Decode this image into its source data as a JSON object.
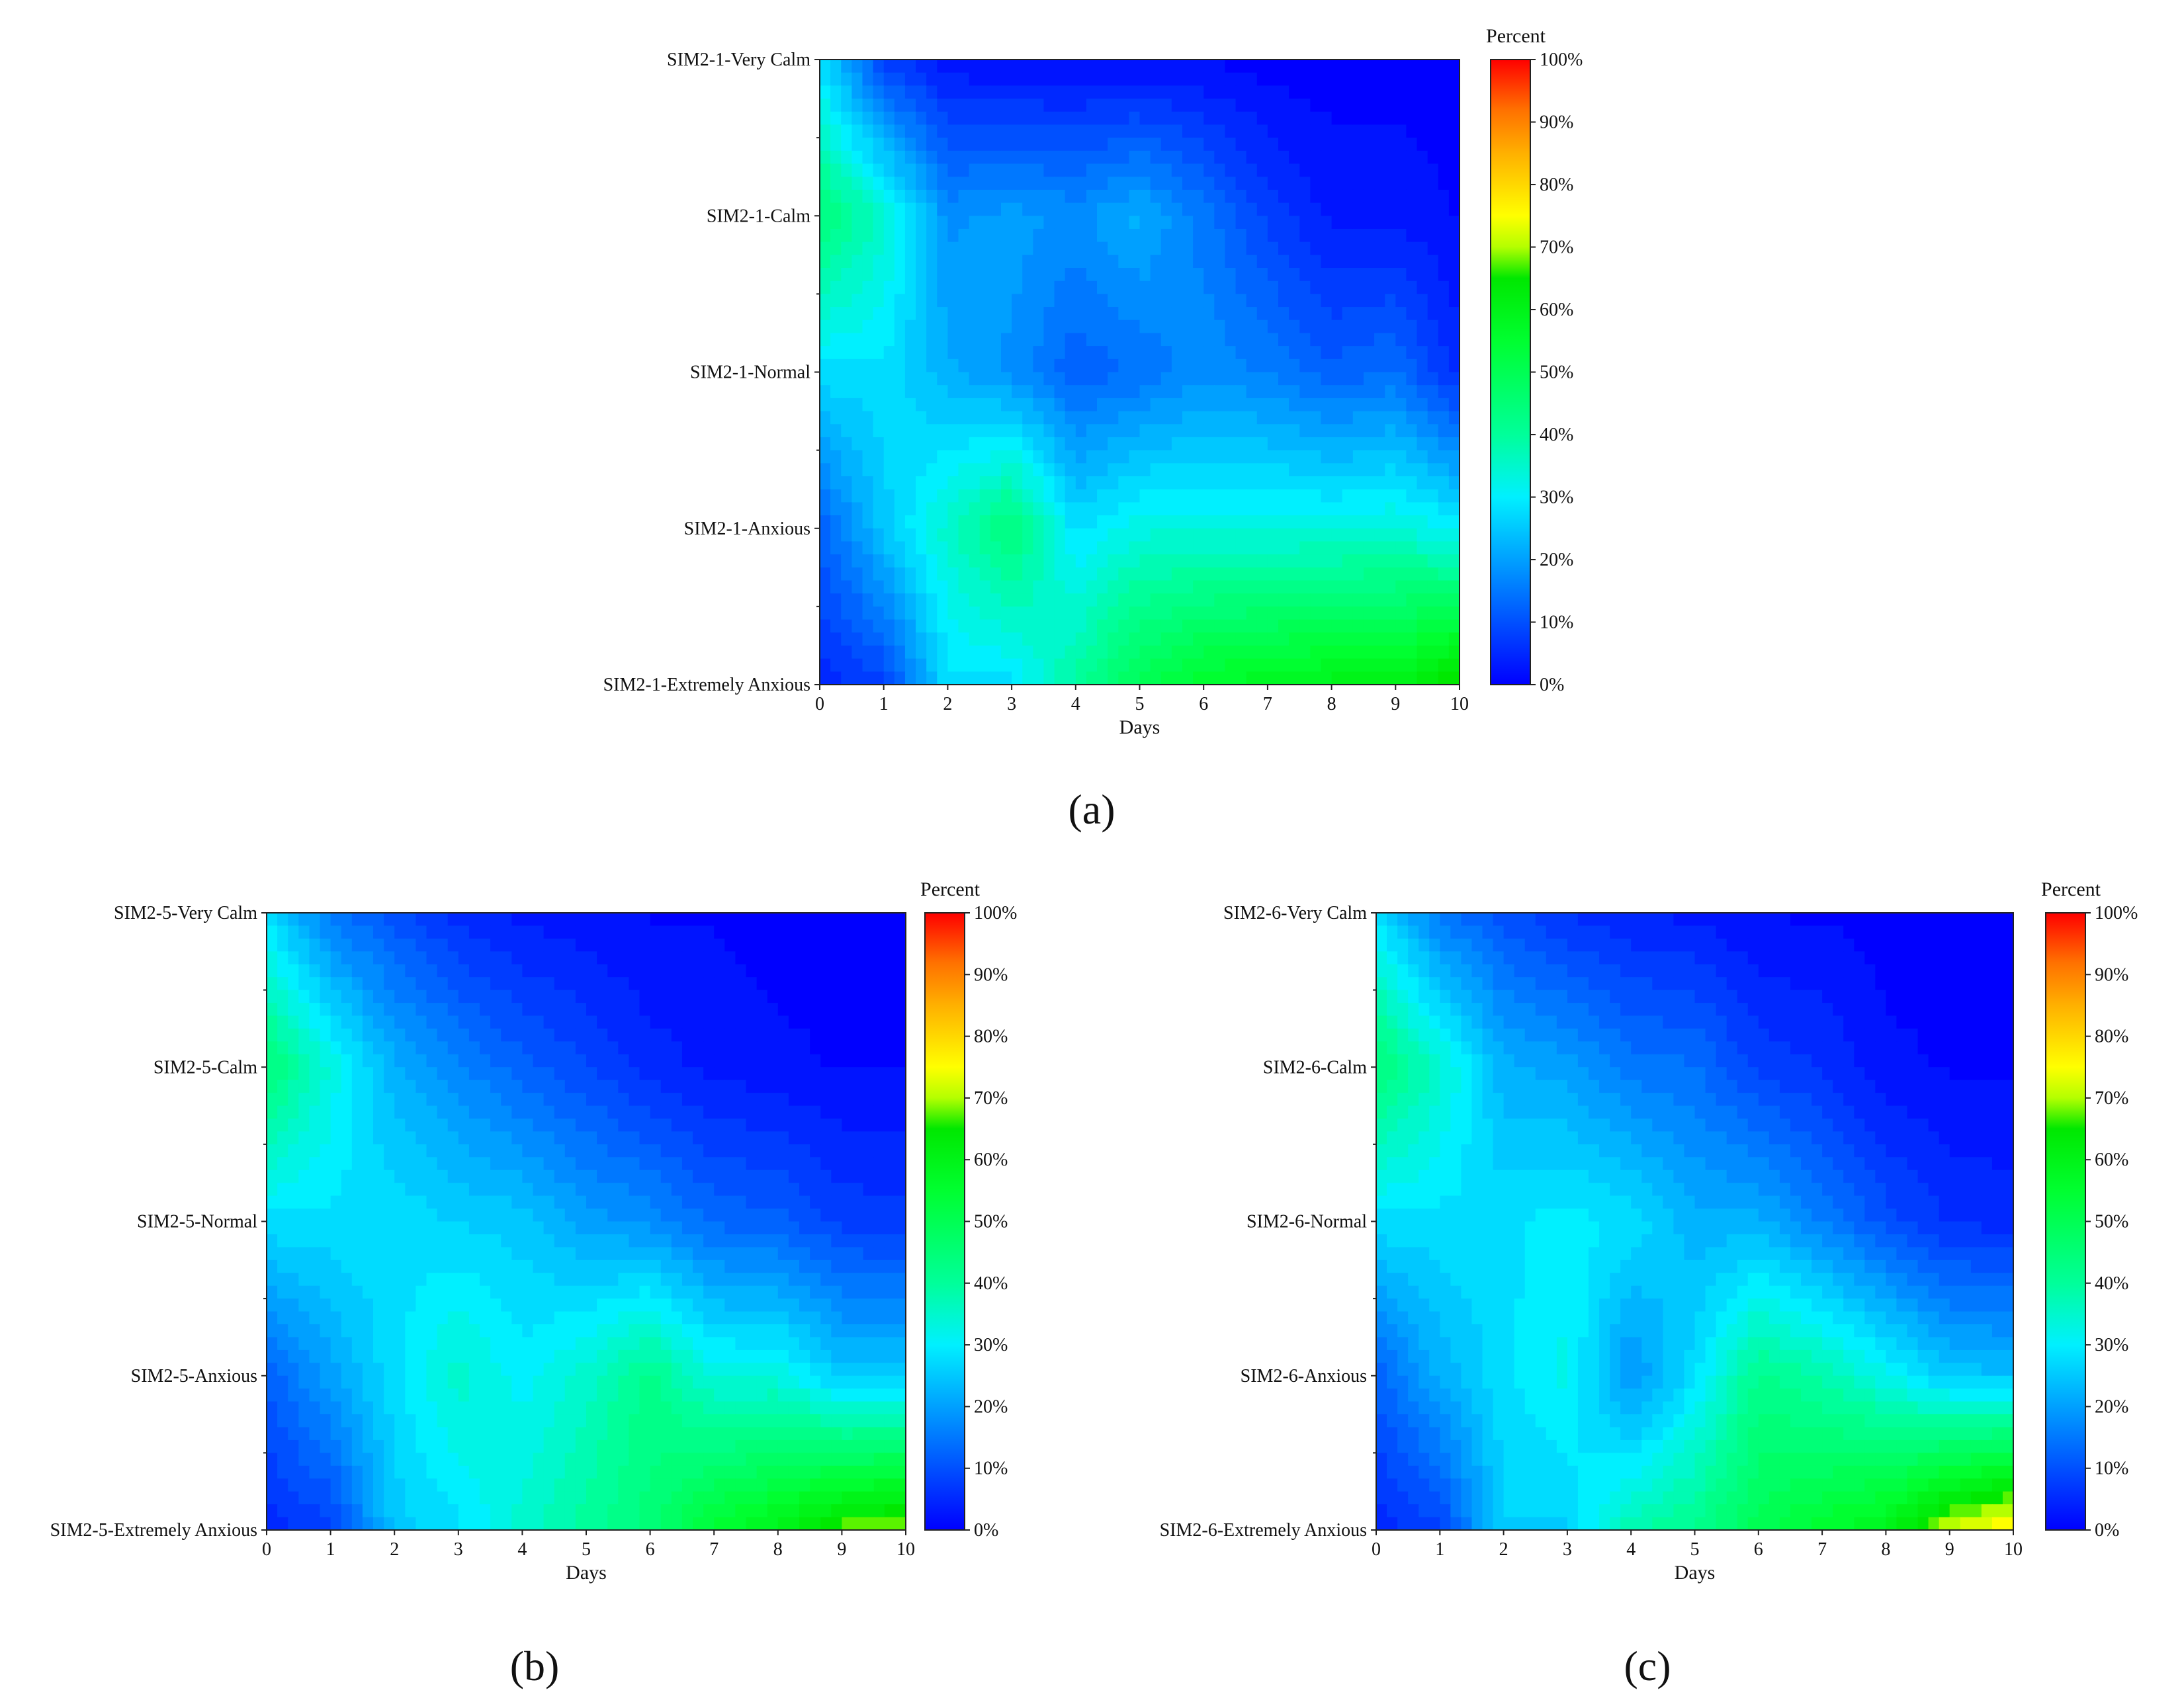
{
  "chart_data": [
    {
      "type": "heatmap",
      "panel_label": "(a)",
      "xlabel": "Days",
      "x": [
        0,
        1,
        2,
        3,
        4,
        5,
        6,
        7,
        8,
        9,
        10
      ],
      "categories": [
        "SIM2-1-Very Calm",
        "SIM2-1-Calm",
        "SIM2-1-Normal",
        "SIM2-1-Anxious",
        "SIM2-1-Extremely Anxious"
      ],
      "colorbar": {
        "title": "Percent",
        "ticks": [
          "0%",
          "10%",
          "20%",
          "30%",
          "40%",
          "50%",
          "60%",
          "70%",
          "80%",
          "90%",
          "100%"
        ],
        "range": [
          0,
          100
        ]
      },
      "values": [
        [
          28,
          8,
          2,
          1,
          1,
          1,
          1,
          0,
          0,
          0,
          0
        ],
        [
          45,
          35,
          18,
          20,
          18,
          22,
          15,
          8,
          3,
          3,
          1
        ],
        [
          28,
          28,
          22,
          18,
          12,
          14,
          18,
          16,
          12,
          14,
          5
        ],
        [
          12,
          25,
          35,
          45,
          28,
          33,
          33,
          33,
          33,
          34,
          30
        ],
        [
          5,
          8,
          28,
          28,
          40,
          50,
          56,
          58,
          60,
          60,
          68
        ]
      ]
    },
    {
      "type": "heatmap",
      "panel_label": "(b)",
      "xlabel": "Days",
      "x": [
        0,
        1,
        2,
        3,
        4,
        5,
        6,
        7,
        8,
        9,
        10
      ],
      "categories": [
        "SIM2-5-Very Calm",
        "SIM2-5-Calm",
        "SIM2-5-Normal",
        "SIM2-5-Anxious",
        "SIM2-5-Extremely Anxious"
      ],
      "colorbar": {
        "title": "Percent",
        "ticks": [
          "0%",
          "10%",
          "20%",
          "30%",
          "40%",
          "50%",
          "60%",
          "70%",
          "80%",
          "90%",
          "100%"
        ],
        "range": [
          0,
          100
        ]
      },
      "values": [
        [
          28,
          15,
          10,
          5,
          3,
          2,
          1,
          1,
          0,
          0,
          0
        ],
        [
          45,
          33,
          22,
          17,
          12,
          9,
          5,
          3,
          2,
          1,
          1
        ],
        [
          28,
          28,
          28,
          26,
          25,
          20,
          18,
          13,
          12,
          8,
          7
        ],
        [
          12,
          20,
          28,
          35,
          30,
          35,
          42,
          33,
          33,
          25,
          25
        ],
        [
          5,
          8,
          25,
          28,
          35,
          40,
          45,
          55,
          60,
          68,
          70
        ]
      ]
    },
    {
      "type": "heatmap",
      "panel_label": "(c)",
      "xlabel": "Days",
      "x": [
        0,
        1,
        2,
        3,
        4,
        5,
        6,
        7,
        8,
        9,
        10
      ],
      "categories": [
        "SIM2-6-Very Calm",
        "SIM2-6-Calm",
        "SIM2-6-Normal",
        "SIM2-6-Anxious",
        "SIM2-6-Extremely Anxious"
      ],
      "colorbar": {
        "title": "Percent",
        "ticks": [
          "0%",
          "10%",
          "20%",
          "30%",
          "40%",
          "50%",
          "60%",
          "70%",
          "80%",
          "90%",
          "100%"
        ],
        "range": [
          0,
          100
        ]
      },
      "values": [
        [
          28,
          15,
          10,
          6,
          4,
          3,
          1,
          1,
          0,
          0,
          0
        ],
        [
          45,
          35,
          22,
          20,
          15,
          14,
          8,
          6,
          2,
          1,
          1
        ],
        [
          28,
          28,
          28,
          30,
          28,
          22,
          22,
          16,
          10,
          6,
          5
        ],
        [
          12,
          22,
          28,
          32,
          18,
          28,
          42,
          38,
          32,
          25,
          24
        ],
        [
          5,
          8,
          26,
          26,
          38,
          42,
          50,
          55,
          60,
          72,
          78
        ]
      ]
    }
  ]
}
